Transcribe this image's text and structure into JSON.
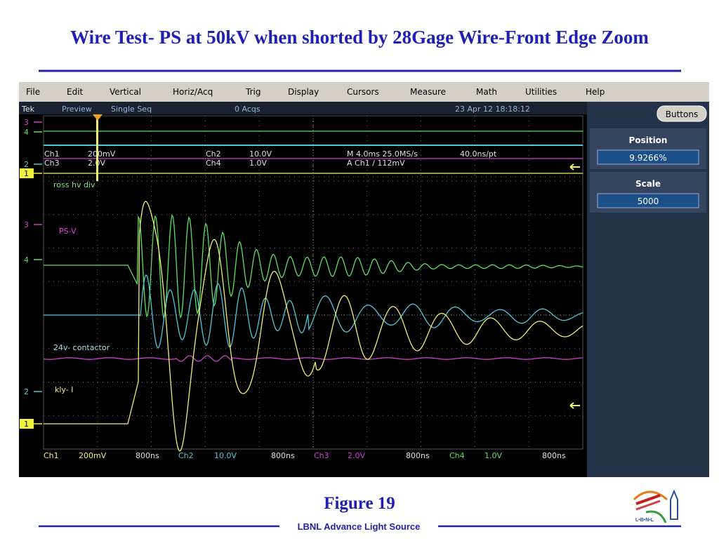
{
  "title": "Wire Test- PS at 50kV when shorted by 28Gage Wire-Front Edge Zoom",
  "menu": [
    "File",
    "Edit",
    "Vertical",
    "Horiz/Acq",
    "Trig",
    "Display",
    "Cursors",
    "Measure",
    "Math",
    "Utilities",
    "Help"
  ],
  "status": {
    "brand": "Tek",
    "mode": "Preview",
    "acq_mode": "Single Seq",
    "acqs": "0 Acqs",
    "datetime": "23 Apr 12 18:18:12"
  },
  "overview": {
    "ch1": "Ch1",
    "ch1_scale": "200mV",
    "ch2": "Ch2",
    "ch2_scale": "10.0V",
    "timebase": "M 4.0ms 25.0MS/s",
    "resolution": "40.0ns/pt",
    "ch3": "Ch3",
    "ch3_scale": "2.0V",
    "ch4": "Ch4",
    "ch4_scale": "1.0V",
    "trigger": "A  Ch1  ∕  112mV"
  },
  "markers": {
    "top": [
      "3",
      "4",
      "2",
      "1"
    ],
    "main": [
      "3",
      "4",
      "2",
      "1"
    ]
  },
  "trace_labels": [
    "ross hv div",
    "PS-V",
    "24v- contactor",
    "kly- I"
  ],
  "readout": [
    [
      "Ch1",
      "200mV",
      "800ns"
    ],
    [
      "Ch2",
      "10.0V",
      "800ns"
    ],
    [
      "Ch3",
      "2.0V",
      "800ns"
    ],
    [
      "Ch4",
      "1.0V",
      "800ns"
    ]
  ],
  "panel": {
    "button": "Buttons",
    "position_label": "Position",
    "position_value": "9.9266%",
    "scale_label": "Scale",
    "scale_value": "5000"
  },
  "caption": "Figure 19",
  "footer": "LBNL Advance Light Source",
  "logo_text": "L•B•N•L"
}
